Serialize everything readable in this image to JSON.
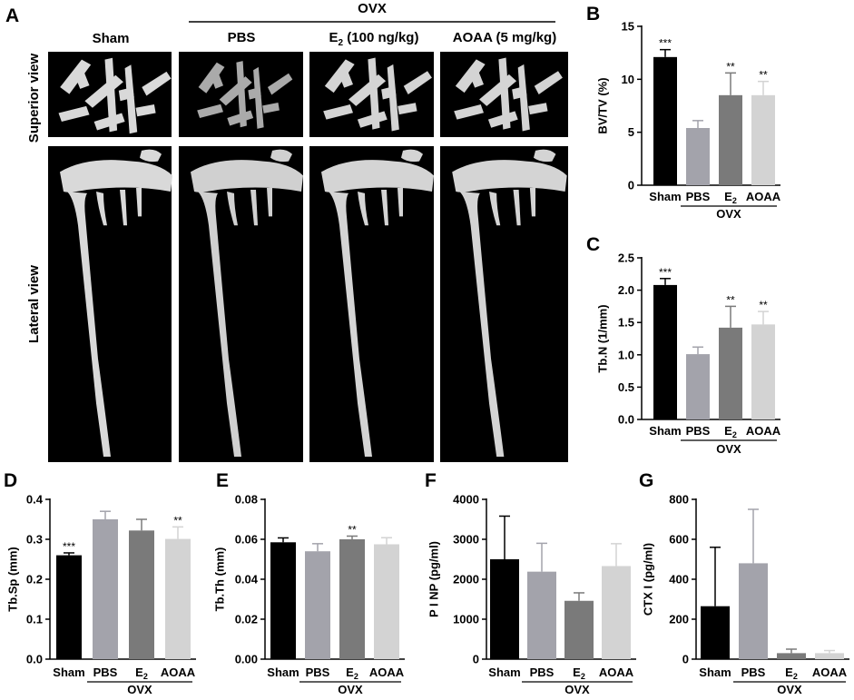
{
  "panel_a": {
    "letter": "A",
    "group_header": "OVX",
    "columns": [
      {
        "label": "Sham"
      },
      {
        "label": "PBS"
      },
      {
        "label_main": "E",
        "label_sub": "2",
        "label_rest": " (100 ng/kg)"
      },
      {
        "label": "AOAA (5 mg/kg)"
      }
    ],
    "rows": [
      "Superior view",
      "Lateral view"
    ]
  },
  "colors": {
    "sham": "#000000",
    "pbs": "#a3a3ab",
    "e2": "#7a7a7a",
    "aoaa": "#d3d3d3",
    "bone": "#d9d9d9",
    "photo_bg": "#000000"
  },
  "chart_data": [
    {
      "id": "B",
      "letter": "B",
      "type": "bar",
      "ylabel": "BV/TV (%)",
      "ylim": [
        0,
        15
      ],
      "yticks": [
        "0",
        "5",
        "10",
        "15"
      ],
      "categories": [
        "Sham",
        "PBS",
        "E2",
        "AOAA"
      ],
      "values": [
        12.1,
        5.4,
        8.5,
        8.5
      ],
      "errors": [
        0.7,
        0.7,
        2.1,
        1.3
      ],
      "significance": [
        "***",
        "",
        "**",
        "**"
      ],
      "group_label": "OVX"
    },
    {
      "id": "C",
      "letter": "C",
      "type": "bar",
      "ylabel": "Tb.N (1/mm)",
      "ylim": [
        0,
        2.5
      ],
      "yticks": [
        "0.0",
        "0.5",
        "1.0",
        "1.5",
        "2.0",
        "2.5"
      ],
      "categories": [
        "Sham",
        "PBS",
        "E2",
        "AOAA"
      ],
      "values": [
        2.08,
        1.01,
        1.42,
        1.47
      ],
      "errors": [
        0.1,
        0.11,
        0.33,
        0.2
      ],
      "significance": [
        "***",
        "",
        "**",
        "**"
      ],
      "group_label": "OVX"
    },
    {
      "id": "D",
      "letter": "D",
      "type": "bar",
      "ylabel": "Tb.Sp (mm)",
      "ylim": [
        0,
        0.4
      ],
      "yticks": [
        "0.0",
        "0.1",
        "0.2",
        "0.3",
        "0.4"
      ],
      "categories": [
        "Sham",
        "PBS",
        "E2",
        "AOAA"
      ],
      "values": [
        0.26,
        0.35,
        0.322,
        0.301
      ],
      "errors": [
        0.006,
        0.02,
        0.028,
        0.03
      ],
      "significance": [
        "***",
        "",
        "",
        "**"
      ],
      "group_label": "OVX"
    },
    {
      "id": "E",
      "letter": "E",
      "type": "bar",
      "ylabel": "Tb.Th (mm)",
      "ylim": [
        0,
        0.08
      ],
      "yticks": [
        "0.00",
        "0.02",
        "0.04",
        "0.06",
        "0.08"
      ],
      "categories": [
        "Sham",
        "PBS",
        "E2",
        "AOAA"
      ],
      "values": [
        0.0585,
        0.054,
        0.06,
        0.0575
      ],
      "errors": [
        0.0022,
        0.0038,
        0.0016,
        0.0033
      ],
      "significance": [
        "",
        "",
        "**",
        ""
      ],
      "group_label": "OVX"
    },
    {
      "id": "F",
      "letter": "F",
      "type": "bar",
      "ylabel": "P I NP (pg/ml)",
      "ylim": [
        0,
        4000
      ],
      "yticks": [
        "0",
        "1000",
        "2000",
        "3000",
        "4000"
      ],
      "categories": [
        "Sham",
        "PBS",
        "E2",
        "AOAA"
      ],
      "values": [
        2500,
        2190,
        1460,
        2330
      ],
      "errors": [
        1080,
        710,
        200,
        560
      ],
      "significance": [
        "",
        "",
        "",
        ""
      ],
      "group_label": "OVX"
    },
    {
      "id": "G",
      "letter": "G",
      "type": "bar",
      "ylabel": "CTX I  (pg/ml)",
      "ylim": [
        0,
        800
      ],
      "yticks": [
        "0",
        "200",
        "400",
        "600",
        "800"
      ],
      "categories": [
        "Sham",
        "PBS",
        "E2",
        "AOAA"
      ],
      "values": [
        265,
        480,
        30,
        30
      ],
      "errors": [
        295,
        270,
        20,
        13
      ],
      "significance": [
        "",
        "",
        "",
        ""
      ],
      "group_label": "OVX"
    }
  ]
}
